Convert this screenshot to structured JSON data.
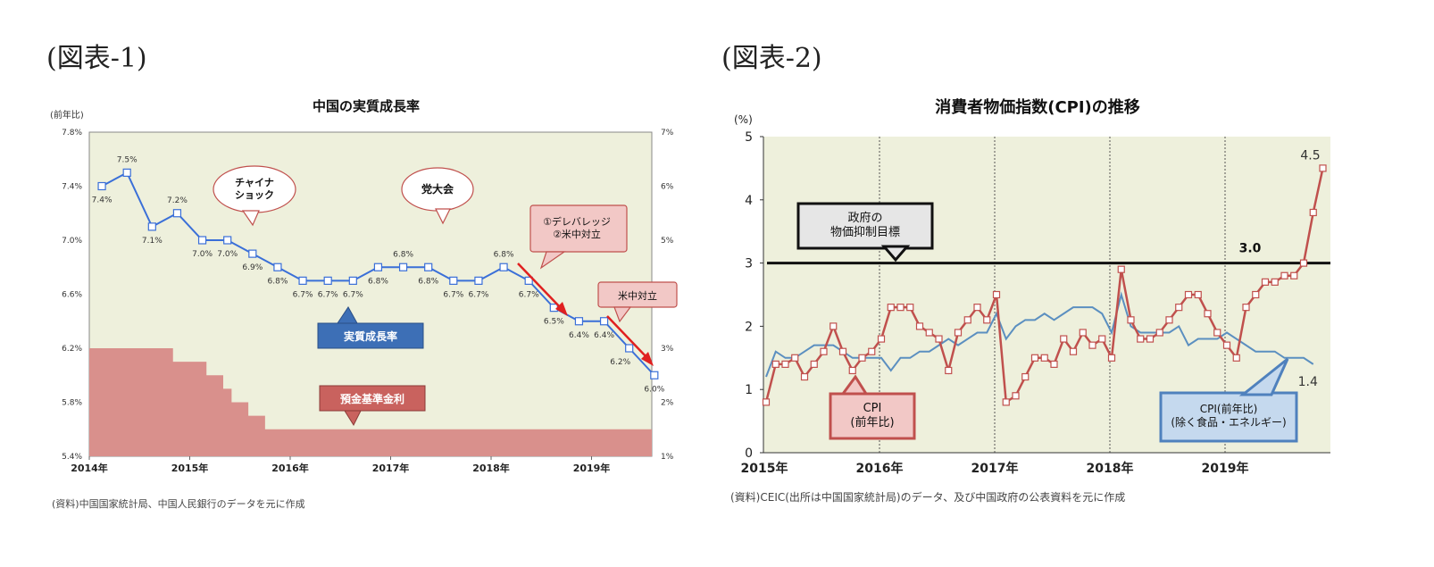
{
  "figure1": {
    "label": "(図表-1)",
    "source": "(資料)中国国家統計局、中国人民銀行のデータを元に作成",
    "chart_data": {
      "type": "line",
      "title": "中国の実質成長率",
      "unit_label": "(前年比)",
      "left_axis_ticks": [
        "7.8%",
        "7.4%",
        "7.0%",
        "6.6%",
        "6.2%",
        "5.8%",
        "5.4%"
      ],
      "right_axis_ticks": [
        "7%",
        "6%",
        "5%",
        "4%",
        "3%",
        "2%",
        "1%"
      ],
      "x_ticks": [
        "2014年",
        "2015年",
        "2016年",
        "2017年",
        "2018年",
        "2019年"
      ],
      "ylim": [
        5.4,
        7.8
      ],
      "right_ylim": [
        1,
        7
      ],
      "series": [
        {
          "name": "実質成長率",
          "color": "#3a6fd8",
          "x": [
            "2014Q1",
            "2014Q2",
            "2014Q3",
            "2014Q4",
            "2015Q1",
            "2015Q2",
            "2015Q3",
            "2015Q4",
            "2016Q1",
            "2016Q2",
            "2016Q3",
            "2016Q4",
            "2017Q1",
            "2017Q2",
            "2017Q3",
            "2017Q4",
            "2018Q1",
            "2018Q2",
            "2018Q3",
            "2018Q4",
            "2019Q1",
            "2019Q2",
            "2019Q3"
          ],
          "values": [
            7.4,
            7.5,
            7.1,
            7.2,
            7.0,
            7.0,
            6.9,
            6.8,
            6.7,
            6.7,
            6.7,
            6.8,
            6.8,
            6.8,
            6.7,
            6.7,
            6.8,
            6.7,
            6.5,
            6.4,
            6.4,
            6.2,
            6.0
          ],
          "value_labels": [
            "7.4%",
            "7.5%",
            "7.1%",
            "7.2%",
            "7.0%",
            "7.0%",
            "6.9%",
            "6.8%",
            "6.7%",
            "6.7%",
            "6.7%",
            "6.8%",
            "6.8%",
            "6.8%",
            "6.7%",
            "6.7%",
            "6.8%",
            "6.7%",
            "6.5%",
            "6.4%",
            "6.4%",
            "6.2%",
            "6.0%"
          ]
        },
        {
          "name": "預金基準金利",
          "type": "area",
          "color": "#d9908c",
          "axis": "right",
          "x": [
            "2014-01",
            "2014-11",
            "2015-03",
            "2015-05",
            "2015-06",
            "2015-08",
            "2015-10",
            "2019-12"
          ],
          "values": [
            3.0,
            2.75,
            2.5,
            2.25,
            2.0,
            1.75,
            1.5,
            1.5
          ]
        }
      ],
      "annotations": [
        {
          "text": "チャイナ\nショック",
          "style": "oval",
          "color": "#ffffff"
        },
        {
          "text": "党大会",
          "style": "oval",
          "color": "#ffffff"
        },
        {
          "text": "①デレバレッジ\n②米中対立",
          "style": "box",
          "color": "#f2c8c6"
        },
        {
          "text": "米中対立",
          "style": "box",
          "color": "#f2c8c6"
        },
        {
          "text": "実質成長率",
          "style": "box",
          "color": "#3d6fb6"
        },
        {
          "text": "預金基準金利",
          "style": "box",
          "color": "#c9625e"
        }
      ]
    }
  },
  "figure2": {
    "label": "(図表-2)",
    "source": "(資料)CEIC(出所は中国国家統計局)のデータ、及び中国政府の公表資料を元に作成",
    "chart_data": {
      "type": "line",
      "title": "消費者物価指数(CPI)の推移",
      "unit_label": "(%)",
      "y_ticks": [
        "5",
        "4",
        "3",
        "2",
        "1",
        "0"
      ],
      "x_ticks": [
        "2015年",
        "2016年",
        "2017年",
        "2018年",
        "2019年"
      ],
      "ylim": [
        0,
        5
      ],
      "target_line": {
        "value": 3.0,
        "label": "3.0"
      },
      "series": [
        {
          "name": "CPI(前年比)",
          "color": "#c0504d",
          "x_start": "2015-01",
          "values": [
            0.8,
            1.4,
            1.4,
            1.5,
            1.2,
            1.4,
            1.6,
            2.0,
            1.6,
            1.3,
            1.5,
            1.6,
            1.8,
            2.3,
            2.3,
            2.3,
            2.0,
            1.9,
            1.8,
            1.3,
            1.9,
            2.1,
            2.3,
            2.1,
            2.5,
            0.8,
            0.9,
            1.2,
            1.5,
            1.5,
            1.4,
            1.8,
            1.6,
            1.9,
            1.7,
            1.8,
            1.5,
            2.9,
            2.1,
            1.8,
            1.8,
            1.9,
            2.1,
            2.3,
            2.5,
            2.5,
            2.2,
            1.9,
            1.7,
            1.5,
            2.3,
            2.5,
            2.7,
            2.7,
            2.8,
            2.8,
            3.0,
            3.8,
            4.5
          ],
          "last_label": "4.5"
        },
        {
          "name": "CPI(前年比)(除く食品・エネルギー)",
          "color": "#5b8fc0",
          "x_start": "2015-01",
          "values": [
            1.2,
            1.6,
            1.5,
            1.5,
            1.6,
            1.7,
            1.7,
            1.7,
            1.6,
            1.5,
            1.5,
            1.5,
            1.5,
            1.3,
            1.5,
            1.5,
            1.6,
            1.6,
            1.7,
            1.8,
            1.7,
            1.8,
            1.9,
            1.9,
            2.2,
            1.8,
            2.0,
            2.1,
            2.1,
            2.2,
            2.1,
            2.2,
            2.3,
            2.3,
            2.3,
            2.2,
            1.9,
            2.5,
            2.0,
            1.9,
            1.9,
            1.9,
            1.9,
            2.0,
            1.7,
            1.8,
            1.8,
            1.8,
            1.9,
            1.8,
            1.7,
            1.6,
            1.6,
            1.6,
            1.5,
            1.5,
            1.5,
            1.4
          ],
          "last_label": "1.4"
        }
      ],
      "annotations": [
        {
          "text": "政府の\n物価抑制目標",
          "style": "box",
          "color": "#e6e6e6"
        },
        {
          "text": "CPI\n(前年比)",
          "style": "box",
          "color": "#f2c8c6"
        },
        {
          "text": "CPI(前年比)\n(除く食品・エネルギー)",
          "style": "box",
          "color": "#c5d9ee"
        }
      ]
    }
  }
}
